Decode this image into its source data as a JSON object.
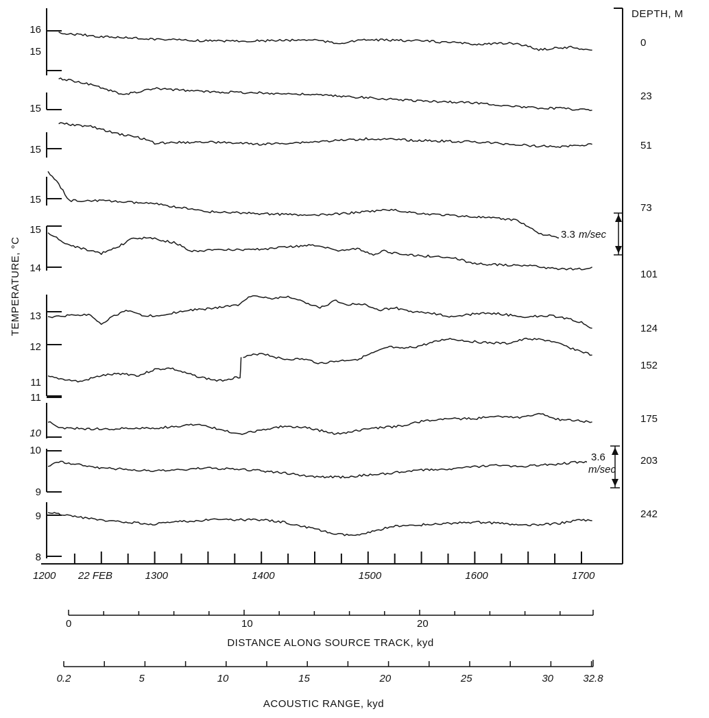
{
  "chart_data": {
    "type": "line",
    "title": "",
    "ylabel": "TEMPERATURE, °C",
    "right_label": "DEPTH, M",
    "xlim": [
      1200,
      1740
    ],
    "time_ticks": [
      "1200",
      "1300",
      "1400",
      "1500",
      "1600",
      "1700"
    ],
    "time_tick_values": [
      1200,
      1300,
      1400,
      1500,
      1600,
      1700
    ],
    "date_label": "22 FEB",
    "distance_axis": {
      "label": "DISTANCE ALONG SOURCE TRACK, kyd",
      "ticks": [
        "0",
        "10",
        "20"
      ],
      "tick_values": [
        0,
        10,
        20
      ],
      "max": 29.8
    },
    "range_axis": {
      "label": "ACOUSTIC RANGE, kyd",
      "ticks": [
        "0.2",
        "5",
        "10",
        "15",
        "20",
        "25",
        "30",
        "32.8"
      ],
      "tick_values": [
        0.2,
        5,
        10,
        15,
        20,
        25,
        30,
        32.8
      ]
    },
    "scale_bars": [
      {
        "label_1": "3.3",
        "label_2": "m/sec",
        "value": 3.3
      },
      {
        "label_1": "3.6",
        "label_2": "m/sec",
        "value": 3.6
      }
    ],
    "temp_axis_ticks": [
      {
        "label": "16",
        "value": 16.0
      },
      {
        "label": "15",
        "value": 15.0
      },
      {
        "label": "15",
        "value": 15.0
      },
      {
        "label": "15",
        "value": 15.0
      },
      {
        "label": "15",
        "value": 15.0
      },
      {
        "label": "15",
        "value": 15.0
      },
      {
        "label": "14",
        "value": 14.0
      },
      {
        "label": "13",
        "value": 13.0
      },
      {
        "label": "12",
        "value": 12.0
      },
      {
        "label": "11",
        "value": 11.0
      },
      {
        "label": "11",
        "value": 11.0
      },
      {
        "label": "10",
        "value": 10.0
      },
      {
        "label": "10",
        "value": 10.0
      },
      {
        "label": "9",
        "value": 9.0
      },
      {
        "label": "9",
        "value": 9.0
      },
      {
        "label": "8",
        "value": 8.0
      }
    ],
    "series": [
      {
        "name": "0",
        "x": [
          1210,
          1250,
          1300,
          1350,
          1400,
          1450,
          1470,
          1500,
          1550,
          1600,
          1640,
          1660,
          1690,
          1710
        ],
        "y": [
          15.83,
          15.77,
          15.73,
          15.7,
          15.7,
          15.72,
          15.66,
          15.72,
          15.7,
          15.65,
          15.66,
          15.56,
          15.6,
          15.55
        ]
      },
      {
        "name": "23",
        "x": [
          1210,
          1240,
          1270,
          1300,
          1350,
          1400,
          1450,
          1500,
          1550,
          1600,
          1650,
          1680,
          1710
        ],
        "y": [
          15.82,
          15.72,
          15.55,
          15.65,
          15.6,
          15.58,
          15.55,
          15.5,
          15.45,
          15.42,
          15.34,
          15.33,
          15.3
        ]
      },
      {
        "name": "51",
        "x": [
          1210,
          1240,
          1260,
          1290,
          1300,
          1350,
          1400,
          1450,
          1500,
          1550,
          1600,
          1650,
          1680,
          1710
        ],
        "y": [
          15.7,
          15.65,
          15.55,
          15.45,
          15.38,
          15.4,
          15.36,
          15.4,
          15.45,
          15.42,
          15.4,
          15.34,
          15.32,
          15.36
        ]
      },
      {
        "name": "73",
        "x": [
          1200,
          1210,
          1220,
          1250,
          1300,
          1320,
          1350,
          1400,
          1450,
          1500,
          1520,
          1550,
          1600,
          1640,
          1660,
          1680,
          1700,
          1710
        ],
        "y": [
          15.75,
          15.55,
          15.3,
          15.3,
          15.25,
          15.2,
          15.13,
          15.1,
          15.07,
          15.13,
          15.16,
          15.1,
          15.05,
          15.0,
          14.8,
          14.72,
          14.72,
          14.85
        ]
      },
      {
        "name": "101",
        "x": [
          1200,
          1220,
          1235,
          1250,
          1265,
          1280,
          1300,
          1320,
          1335,
          1350,
          1400,
          1420,
          1450,
          1470,
          1490,
          1505,
          1515,
          1530,
          1560,
          1580,
          1600,
          1650,
          1680,
          1700,
          1710
        ],
        "y": [
          14.9,
          14.6,
          14.5,
          14.4,
          14.55,
          14.78,
          14.76,
          14.65,
          14.45,
          14.48,
          14.5,
          14.56,
          14.6,
          14.48,
          14.52,
          14.38,
          14.46,
          14.38,
          14.33,
          14.3,
          14.15,
          14.1,
          14.02,
          14.02,
          14.07
        ]
      },
      {
        "name": "124",
        "x": [
          1200,
          1220,
          1240,
          1250,
          1260,
          1275,
          1290,
          1310,
          1330,
          1355,
          1380,
          1390,
          1410,
          1425,
          1440,
          1455,
          1470,
          1480,
          1495,
          1510,
          1525,
          1540,
          1560,
          1580,
          1600,
          1620,
          1645,
          1670,
          1690,
          1700,
          1710
        ],
        "y": [
          12.88,
          12.92,
          12.95,
          12.7,
          12.9,
          13.05,
          12.9,
          12.95,
          13.05,
          13.1,
          13.2,
          13.42,
          13.35,
          13.4,
          13.25,
          13.12,
          13.3,
          13.2,
          13.22,
          13.06,
          13.12,
          13.02,
          12.98,
          12.88,
          12.97,
          12.98,
          12.88,
          12.92,
          12.82,
          12.75,
          12.6
        ]
      },
      {
        "name": "152",
        "x": [
          1200,
          1210,
          1230,
          1250,
          1270,
          1285,
          1300,
          1315,
          1330,
          1345,
          1360,
          1375,
          1380,
          1381,
          1400,
          1420,
          1440,
          1455,
          1470,
          1490,
          1505,
          1520,
          1530,
          1545,
          1560,
          1575,
          1590,
          1610,
          1630,
          1650,
          1670,
          1690,
          1710
        ],
        "y": [
          11.12,
          11.08,
          11.0,
          11.15,
          11.2,
          11.15,
          11.3,
          11.33,
          11.2,
          11.1,
          11.02,
          11.1,
          11.12,
          11.58,
          11.7,
          11.55,
          11.55,
          11.45,
          11.5,
          11.55,
          11.7,
          11.85,
          11.8,
          11.85,
          11.95,
          12.05,
          12.0,
          11.95,
          11.93,
          12.05,
          12.0,
          11.82,
          11.65
        ]
      },
      {
        "name": "175",
        "x": [
          1200,
          1210,
          1250,
          1300,
          1320,
          1340,
          1360,
          1380,
          1400,
          1420,
          1445,
          1470,
          1500,
          1530,
          1550,
          1570,
          1600,
          1620,
          1640,
          1660,
          1680,
          1710
        ],
        "y": [
          10.45,
          10.32,
          10.3,
          10.32,
          10.35,
          10.4,
          10.3,
          10.2,
          10.28,
          10.35,
          10.32,
          10.2,
          10.3,
          10.36,
          10.45,
          10.5,
          10.5,
          10.55,
          10.52,
          10.6,
          10.48,
          10.44
        ]
      },
      {
        "name": "203",
        "x": [
          1200,
          1210,
          1250,
          1300,
          1320,
          1350,
          1400,
          1430,
          1450,
          1480,
          1500,
          1520,
          1550,
          1580,
          1600,
          1620,
          1640,
          1660,
          1680,
          1700,
          1710
        ],
        "y": [
          9.6,
          9.7,
          9.55,
          9.47,
          9.5,
          9.55,
          9.48,
          9.4,
          9.33,
          9.33,
          9.38,
          9.42,
          9.5,
          9.53,
          9.58,
          9.62,
          9.58,
          9.62,
          9.65,
          9.7,
          9.7
        ]
      },
      {
        "name": "242",
        "x": [
          1200,
          1210,
          1250,
          1300,
          1320,
          1350,
          1400,
          1420,
          1450,
          1470,
          1490,
          1500,
          1520,
          1550,
          1580,
          1600,
          1620,
          1650,
          1680,
          1700,
          1710
        ],
        "y": [
          9.08,
          9.05,
          8.88,
          8.8,
          8.85,
          8.9,
          8.9,
          8.85,
          8.68,
          8.55,
          8.52,
          8.58,
          8.73,
          8.78,
          8.82,
          8.85,
          8.82,
          8.76,
          8.82,
          8.9,
          8.88
        ]
      }
    ]
  }
}
